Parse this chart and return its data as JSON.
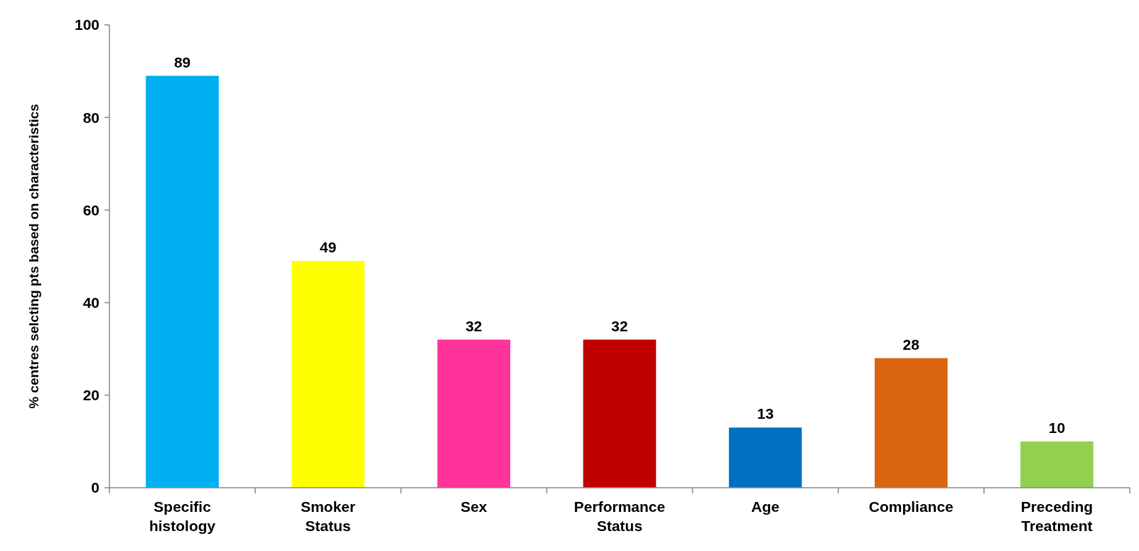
{
  "chart_data": {
    "type": "bar",
    "ylabel": "% centres selcting pts based on characteristics",
    "categories": [
      "Specific histology",
      "Smoker Status",
      "Sex",
      "Performance Status",
      "Age",
      "Compliance",
      "Preceding Treatment"
    ],
    "values": [
      89,
      49,
      32,
      32,
      13,
      28,
      10
    ],
    "colors": [
      "#00b0f0",
      "#ffff00",
      "#ff3399",
      "#c00000",
      "#0070c0",
      "#d9650f",
      "#92d050"
    ],
    "ylim": [
      0,
      100
    ],
    "yticks": [
      0,
      20,
      40,
      60,
      80,
      100
    ],
    "data_labels": true,
    "grid": false
  }
}
